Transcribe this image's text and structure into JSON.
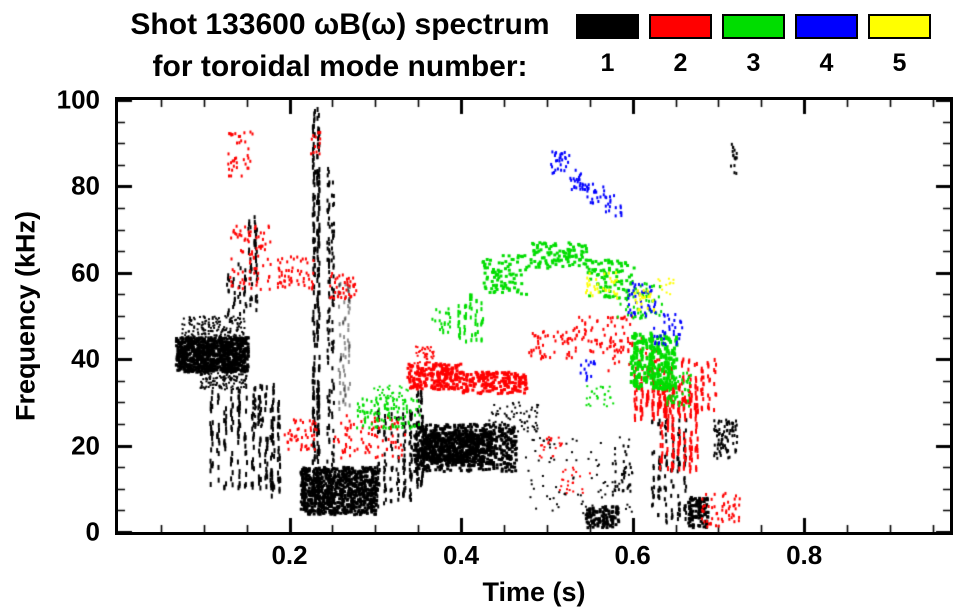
{
  "header": {
    "title_line1": "Shot 133600 ωB(ω) spectrum",
    "title_line2": "for toroidal mode number:"
  },
  "legend": {
    "items": [
      {
        "label": "1",
        "color": "#000000"
      },
      {
        "label": "2",
        "color": "#ff0000"
      },
      {
        "label": "3",
        "color": "#00dd00"
      },
      {
        "label": "4",
        "color": "#0000ff"
      },
      {
        "label": "5",
        "color": "#ffff00"
      }
    ]
  },
  "chart_data": {
    "type": "scatter",
    "title": "Shot 133600 ωB(ω) spectrum for toroidal mode number 1-5",
    "xlabel": "Time (s)",
    "ylabel": "Frequency (kHz)",
    "xlim": [
      0.0,
      0.97
    ],
    "ylim": [
      0,
      100
    ],
    "x_minor_step": 0.05,
    "y_minor_step": 5,
    "grid": false,
    "legend_position": "top-right",
    "xticks": [
      {
        "value": 0.2,
        "label": "0.2"
      },
      {
        "value": 0.4,
        "label": "0.4"
      },
      {
        "value": 0.6,
        "label": "0.6"
      },
      {
        "value": 0.8,
        "label": "0.8"
      }
    ],
    "yticks": [
      {
        "value": 0,
        "label": "0"
      },
      {
        "value": 20,
        "label": "20"
      },
      {
        "value": 40,
        "label": "40"
      },
      {
        "value": 60,
        "label": "60"
      },
      {
        "value": 80,
        "label": "80"
      },
      {
        "value": 100,
        "label": "100"
      }
    ],
    "series": [
      {
        "name": "n=1",
        "color": "#000000",
        "clusters": [
          {
            "t": [
              0.068,
              0.152
            ],
            "f": [
              37,
              45
            ],
            "n": 850,
            "w": 3,
            "h": 3
          },
          {
            "t": [
              0.075,
              0.148
            ],
            "f": [
              44,
              50
            ],
            "n": 180,
            "w": 2,
            "h": 2
          },
          {
            "t": [
              0.095,
              0.15
            ],
            "f": [
              33,
              38
            ],
            "n": 140,
            "w": 2,
            "h": 2
          },
          {
            "t": [
              0.105,
              0.185
            ],
            "f": [
              10,
              34
            ],
            "n": 200,
            "w": 2,
            "h": 5,
            "cols": 10
          },
          {
            "t": [
              0.125,
              0.165
            ],
            "f": [
              50,
              62
            ],
            "n": 55,
            "w": 2,
            "h": 4,
            "cols": 6
          },
          {
            "t": [
              0.15,
              0.164
            ],
            "f": [
              60,
              73
            ],
            "n": 35,
            "w": 2,
            "h": 4,
            "cols": 2
          },
          {
            "t": [
              0.175,
              0.192
            ],
            "f": [
              8,
              30
            ],
            "n": 55,
            "w": 2,
            "h": 5,
            "cols": 2
          },
          {
            "t": [
              0.155,
              0.172
            ],
            "f": [
              24,
              34
            ],
            "n": 35,
            "w": 2,
            "h": 3,
            "cols": 2
          },
          {
            "t": [
              0.226,
              0.236
            ],
            "f": [
              8,
              98
            ],
            "n": 240,
            "w": 2,
            "h": 5,
            "cols": 2
          },
          {
            "t": [
              0.243,
              0.253
            ],
            "f": [
              15,
              85
            ],
            "n": 120,
            "w": 2,
            "h": 4,
            "cols": 2
          },
          {
            "t": [
              0.256,
              0.272
            ],
            "f": [
              28,
              58
            ],
            "n": 70,
            "w": 2,
            "h": 4,
            "cols": 3,
            "alpha": 0.45
          },
          {
            "t": [
              0.213,
              0.302
            ],
            "f": [
              4,
              15
            ],
            "n": 780,
            "w": 3,
            "h": 3
          },
          {
            "t": [
              0.3,
              0.345
            ],
            "f": [
              5,
              28
            ],
            "n": 140,
            "w": 2,
            "h": 4,
            "cols": 6
          },
          {
            "t": [
              0.345,
              0.465
            ],
            "f": [
              14,
              25
            ],
            "n": 600,
            "w": 3,
            "h": 3
          },
          {
            "t": [
              0.355,
              0.435
            ],
            "f": [
              16,
              23
            ],
            "n": 450,
            "w": 3,
            "h": 3
          },
          {
            "t": [
              0.347,
              0.357
            ],
            "f": [
              10,
              33
            ],
            "n": 70,
            "w": 2,
            "h": 4,
            "cols": 2
          },
          {
            "t": [
              0.43,
              0.49
            ],
            "f": [
              23,
              30
            ],
            "n": 70,
            "w": 2,
            "h": 2
          },
          {
            "t": [
              0.47,
              0.6
            ],
            "f": [
              4,
              22
            ],
            "n": 80,
            "w": 2,
            "h": 2
          },
          {
            "t": [
              0.545,
              0.585
            ],
            "f": [
              1,
              6
            ],
            "n": 110,
            "w": 3,
            "h": 3
          },
          {
            "t": [
              0.575,
              0.6
            ],
            "f": [
              8,
              20
            ],
            "n": 35,
            "w": 2,
            "h": 3
          },
          {
            "t": [
              0.62,
              0.665
            ],
            "f": [
              2,
              26
            ],
            "n": 130,
            "w": 2,
            "h": 4,
            "cols": 6
          },
          {
            "t": [
              0.665,
              0.688
            ],
            "f": [
              1,
              8
            ],
            "n": 110,
            "w": 3,
            "h": 3
          },
          {
            "t": [
              0.695,
              0.722
            ],
            "f": [
              17,
              26
            ],
            "n": 80,
            "w": 2,
            "h": 3
          },
          {
            "t": [
              0.714,
              0.722
            ],
            "f": [
              83,
              91
            ],
            "n": 16,
            "w": 2,
            "h": 3,
            "cols": 2
          }
        ]
      },
      {
        "name": "n=2",
        "color": "#ff0000",
        "clusters": [
          {
            "t": [
              0.128,
              0.158
            ],
            "f": [
              82,
              93
            ],
            "n": 38,
            "w": 2,
            "h": 3
          },
          {
            "t": [
              0.225,
              0.237
            ],
            "f": [
              86,
              93
            ],
            "n": 14,
            "w": 2,
            "h": 3
          },
          {
            "t": [
              0.13,
              0.178
            ],
            "f": [
              56,
              71
            ],
            "n": 85,
            "w": 2,
            "h": 3
          },
          {
            "t": [
              0.185,
              0.228
            ],
            "f": [
              56,
              64
            ],
            "n": 55,
            "w": 2,
            "h": 3
          },
          {
            "t": [
              0.245,
              0.278
            ],
            "f": [
              54,
              60
            ],
            "n": 40,
            "w": 2,
            "h": 3
          },
          {
            "t": [
              0.193,
              0.232
            ],
            "f": [
              19,
              26
            ],
            "n": 45,
            "w": 2,
            "h": 3
          },
          {
            "t": [
              0.25,
              0.335
            ],
            "f": [
              17,
              27
            ],
            "n": 85,
            "w": 2,
            "h": 3
          },
          {
            "t": [
              0.338,
              0.4
            ],
            "f": [
              33,
              39
            ],
            "n": 200,
            "w": 3,
            "h": 3
          },
          {
            "t": [
              0.4,
              0.478
            ],
            "f": [
              32,
              37
            ],
            "n": 190,
            "w": 3,
            "h": 3
          },
          {
            "t": [
              0.345,
              0.368
            ],
            "f": [
              39,
              43
            ],
            "n": 35,
            "w": 2,
            "h": 2
          },
          {
            "t": [
              0.478,
              0.532
            ],
            "f": [
              40,
              47
            ],
            "n": 50,
            "w": 2,
            "h": 3
          },
          {
            "t": [
              0.532,
              0.6
            ],
            "f": [
              41,
              50
            ],
            "n": 65,
            "w": 2,
            "h": 3
          },
          {
            "t": [
              0.57,
              0.632
            ],
            "f": [
              37,
              45
            ],
            "n": 45,
            "w": 2,
            "h": 3
          },
          {
            "t": [
              0.6,
              0.648
            ],
            "f": [
              26,
              38
            ],
            "n": 110,
            "w": 2,
            "h": 5,
            "cols": 7
          },
          {
            "t": [
              0.63,
              0.678
            ],
            "f": [
              14,
              34
            ],
            "n": 150,
            "w": 2,
            "h": 5,
            "cols": 7
          },
          {
            "t": [
              0.655,
              0.7
            ],
            "f": [
              28,
              40
            ],
            "n": 70,
            "w": 2,
            "h": 4,
            "cols": 6
          },
          {
            "t": [
              0.68,
              0.728
            ],
            "f": [
              1,
              9
            ],
            "n": 55,
            "w": 2,
            "h": 3
          },
          {
            "t": [
              0.49,
              0.518
            ],
            "f": [
              17,
              22
            ],
            "n": 22,
            "w": 2,
            "h": 2
          },
          {
            "t": [
              0.515,
              0.552
            ],
            "f": [
              9,
              15
            ],
            "n": 22,
            "w": 2,
            "h": 2
          }
        ]
      },
      {
        "name": "n=3",
        "color": "#00dd00",
        "clusters": [
          {
            "t": [
              0.278,
              0.352
            ],
            "f": [
              24,
              31
            ],
            "n": 100,
            "w": 2,
            "h": 3
          },
          {
            "t": [
              0.298,
              0.338
            ],
            "f": [
              30,
              34
            ],
            "n": 35,
            "w": 2,
            "h": 2
          },
          {
            "t": [
              0.395,
              0.428
            ],
            "f": [
              44,
              55
            ],
            "n": 55,
            "w": 2,
            "h": 4,
            "cols": 5
          },
          {
            "t": [
              0.365,
              0.388
            ],
            "f": [
              46,
              52
            ],
            "n": 22,
            "w": 2,
            "h": 3
          },
          {
            "t": [
              0.425,
              0.478
            ],
            "f": [
              55,
              64
            ],
            "n": 85,
            "w": 3,
            "h": 3
          },
          {
            "t": [
              0.478,
              0.548
            ],
            "f": [
              61,
              67
            ],
            "n": 105,
            "w": 3,
            "h": 3
          },
          {
            "t": [
              0.548,
              0.602
            ],
            "f": [
              54,
              63
            ],
            "n": 85,
            "w": 3,
            "h": 3
          },
          {
            "t": [
              0.582,
              0.638
            ],
            "f": [
              49,
              58
            ],
            "n": 60,
            "w": 2,
            "h": 3
          },
          {
            "t": [
              0.598,
              0.652
            ],
            "f": [
              33,
              46
            ],
            "n": 240,
            "w": 3,
            "h": 4
          },
          {
            "t": [
              0.64,
              0.668
            ],
            "f": [
              29,
              37
            ],
            "n": 55,
            "w": 2,
            "h": 3
          },
          {
            "t": [
              0.545,
              0.578
            ],
            "f": [
              29,
              34
            ],
            "n": 26,
            "w": 2,
            "h": 2
          }
        ]
      },
      {
        "name": "n=4",
        "color": "#0000ff",
        "clusters": [
          {
            "t": [
              0.505,
              0.527
            ],
            "f": [
              83,
              88
            ],
            "n": 28,
            "w": 2,
            "h": 3
          },
          {
            "t": [
              0.527,
              0.547
            ],
            "f": [
              79,
              84
            ],
            "n": 26,
            "w": 2,
            "h": 3
          },
          {
            "t": [
              0.547,
              0.567
            ],
            "f": [
              76,
              81
            ],
            "n": 22,
            "w": 2,
            "h": 3
          },
          {
            "t": [
              0.567,
              0.588
            ],
            "f": [
              73,
              78
            ],
            "n": 18,
            "w": 2,
            "h": 3
          },
          {
            "t": [
              0.595,
              0.628
            ],
            "f": [
              50,
              58
            ],
            "n": 40,
            "w": 2,
            "h": 3
          },
          {
            "t": [
              0.625,
              0.658
            ],
            "f": [
              43,
              51
            ],
            "n": 36,
            "w": 2,
            "h": 3
          },
          {
            "t": [
              0.538,
              0.558
            ],
            "f": [
              35,
              40
            ],
            "n": 14,
            "w": 2,
            "h": 3
          }
        ]
      },
      {
        "name": "n=5",
        "color": "#ffff00",
        "clusters": [
          {
            "t": [
              0.545,
              0.582
            ],
            "f": [
              54,
              60
            ],
            "n": 32,
            "w": 2,
            "h": 3
          },
          {
            "t": [
              0.598,
              0.628
            ],
            "f": [
              51,
              56
            ],
            "n": 22,
            "w": 2,
            "h": 3
          },
          {
            "t": [
              0.628,
              0.648
            ],
            "f": [
              55,
              60
            ],
            "n": 12,
            "w": 2,
            "h": 2
          }
        ]
      }
    ]
  }
}
